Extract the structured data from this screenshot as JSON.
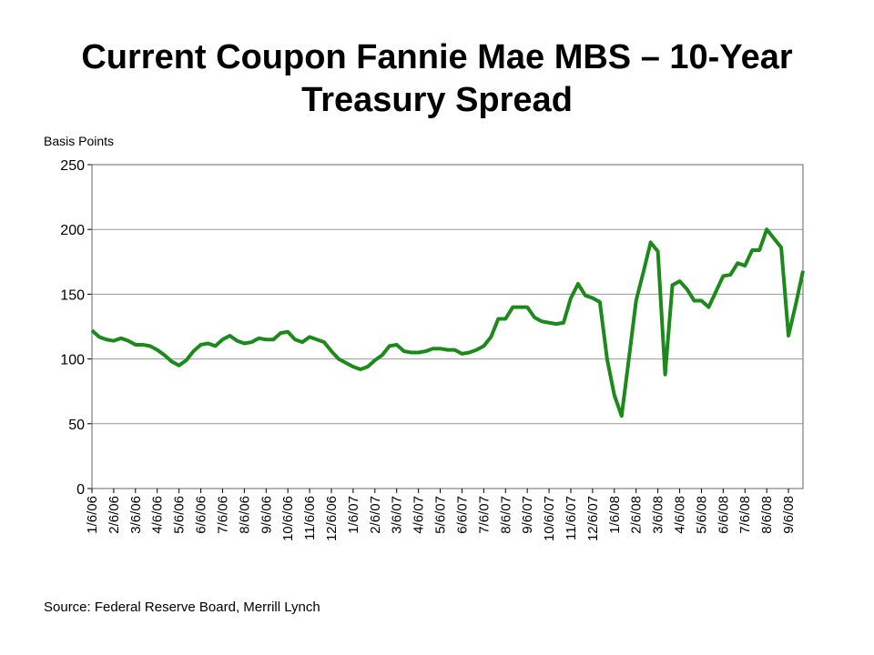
{
  "chart_data": {
    "type": "line",
    "title": "Current Coupon Fannie Mae MBS – 10-Year Treasury Spread",
    "y_label": "Basis Points",
    "source": "Source:  Federal Reserve Board, Merrill Lynch",
    "categories": [
      "1/6/06",
      null,
      null,
      "2/6/06",
      null,
      null,
      "3/6/06",
      null,
      null,
      "4/6/06",
      null,
      null,
      "5/6/06",
      null,
      null,
      "6/6/06",
      null,
      null,
      "7/6/06",
      null,
      null,
      "8/6/06",
      null,
      null,
      "9/6/06",
      null,
      null,
      "10/6/06",
      null,
      null,
      "11/6/06",
      null,
      null,
      "12/6/06",
      null,
      null,
      "1/6/07",
      null,
      null,
      "2/6/07",
      null,
      null,
      "3/6/07",
      null,
      null,
      "4/6/07",
      null,
      null,
      "5/6/07",
      null,
      null,
      "6/6/07",
      null,
      null,
      "7/6/07",
      null,
      null,
      "8/6/07",
      null,
      null,
      "9/6/07",
      null,
      null,
      "10/6/07",
      null,
      null,
      "11/6/07",
      null,
      null,
      "12/6/07",
      null,
      null,
      "1/6/08",
      null,
      null,
      "2/6/08",
      null,
      null,
      "3/6/08",
      null,
      null,
      "4/6/08",
      null,
      null,
      "5/6/08",
      null,
      null,
      "6/6/08",
      null,
      null,
      "7/6/08",
      null,
      null,
      "8/6/08",
      null,
      null,
      "9/6/08",
      null,
      null
    ],
    "series": [
      {
        "name": "Spread",
        "color": "#1b8a1b",
        "values": [
          122,
          117,
          115,
          114,
          116,
          114,
          111,
          111,
          110,
          107,
          103,
          98,
          95,
          99,
          106,
          111,
          112,
          110,
          115,
          118,
          114,
          112,
          113,
          116,
          115,
          115,
          120,
          121,
          115,
          113,
          117,
          115,
          113,
          106,
          100,
          97,
          94,
          92,
          94,
          99,
          103,
          110,
          111,
          106,
          105,
          105,
          106,
          108,
          108,
          107,
          107,
          104,
          105,
          107,
          110,
          117,
          131,
          131,
          140,
          140,
          140,
          132,
          129,
          128,
          127,
          128,
          147,
          158,
          149,
          147,
          144,
          100,
          72,
          56,
          100,
          145,
          167,
          190,
          183,
          88,
          157,
          160,
          154,
          145,
          145,
          140,
          152,
          164,
          165,
          174,
          172,
          184,
          184,
          200,
          193,
          186,
          118,
          142,
          168
        ]
      }
    ],
    "ylim": [
      0,
      250
    ],
    "yticks": [
      0,
      50,
      100,
      150,
      200,
      250
    ],
    "grid": true
  }
}
